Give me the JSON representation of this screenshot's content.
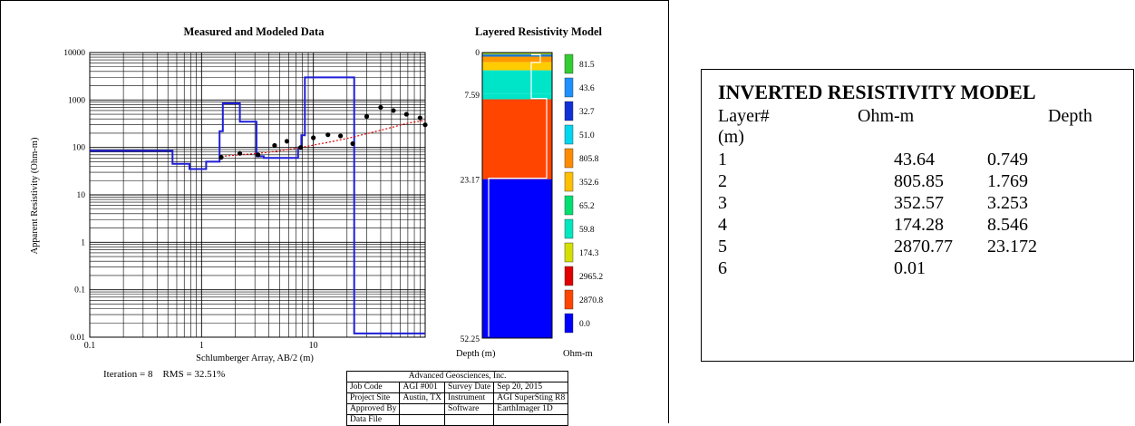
{
  "report": {
    "left_chart": {
      "title": "Measured and Modeled Data",
      "xlabel": "Schlumberger Array, AB/2 (m)",
      "ylabel": "Apparent Resistivity (Ohm-m)",
      "iteration_label": "Iteration = 8",
      "rms_label": "RMS = 32.51%"
    },
    "right_chart": {
      "title": "Layered Resistivity Model",
      "depth_label": "Depth (m)",
      "ohm_label": "Ohm-m"
    },
    "info_table": {
      "company": "Advanced Geosciences, Inc.",
      "rows": [
        [
          "Job Code",
          "AGI #001",
          "Survey Date",
          "Sep 20, 2015"
        ],
        [
          "Project Site",
          "Austin, TX",
          "Instrument",
          "AGI SuperSting R8"
        ],
        [
          "Approved By",
          "",
          "Software",
          "EarthImager 1D"
        ],
        [
          "Data File",
          "",
          "",
          ""
        ]
      ]
    }
  },
  "colors": {
    "model_line": "#1f1fd6",
    "fit_line": "#e00000",
    "points": "#000000"
  },
  "chart_data": [
    {
      "type": "line",
      "title": "Measured and Modeled Data",
      "xlabel": "Schlumberger Array, AB/2 (m)",
      "ylabel": "Apparent Resistivity (Ohm-m)",
      "x_scale": "log",
      "y_scale": "log",
      "xlim": [
        0.1,
        100
      ],
      "ylim": [
        0.01,
        10000
      ],
      "x_ticks": [
        "0.1",
        "1",
        "10"
      ],
      "y_ticks": [
        "0.01",
        "0.1",
        "1",
        "10",
        "100",
        "1000",
        "10000"
      ],
      "grid": true,
      "series": [
        {
          "kind": "step-model",
          "x": [
            0.1,
            0.55,
            0.55,
            0.78,
            0.78,
            1.1,
            1.1,
            1.45,
            1.45,
            1.55,
            1.55,
            2.2,
            2.2,
            3.1,
            3.1,
            3.6,
            3.6,
            4.3,
            4.3,
            7.3,
            7.3,
            7.8,
            7.8,
            8.4,
            8.4,
            23.2,
            23.2,
            100
          ],
          "y": [
            85,
            85,
            45,
            45,
            35,
            35,
            50,
            50,
            220,
            220,
            850,
            850,
            350,
            350,
            65,
            65,
            60,
            60,
            60,
            60,
            100,
            100,
            180,
            180,
            3000,
            3000,
            0.012,
            0.012
          ]
        },
        {
          "kind": "measured",
          "x": [
            1.5,
            2.2,
            3.2,
            4.5,
            5.8,
            7.7,
            10,
            13.5,
            17.5,
            22.5,
            30,
            40,
            52,
            68,
            90,
            100
          ],
          "y": [
            62,
            75,
            70,
            110,
            135,
            100,
            160,
            185,
            175,
            120,
            450,
            700,
            600,
            500,
            420,
            300
          ]
        },
        {
          "kind": "fit",
          "x": [
            1.5,
            2.2,
            3.2,
            4.5,
            5.8,
            7.7,
            10,
            13.5,
            17.5,
            22.5,
            30,
            40,
            52,
            68,
            90,
            100
          ],
          "y": [
            65,
            70,
            75,
            82,
            90,
            100,
            112,
            128,
            145,
            165,
            195,
            230,
            270,
            320,
            360,
            375
          ]
        }
      ]
    },
    {
      "type": "table",
      "title": "Layered Resistivity Model",
      "depth_ticks": [
        "0",
        "7.59",
        "23.17",
        "52.25"
      ],
      "depth_range": [
        0,
        52.25
      ],
      "layers": [
        {
          "top": 0,
          "bottom": 0.35,
          "color": "#9acd32"
        },
        {
          "top": 0.35,
          "bottom": 0.75,
          "color": "#1874cd"
        },
        {
          "top": 0.75,
          "bottom": 1.77,
          "color": "#ff9900"
        },
        {
          "top": 1.77,
          "bottom": 3.25,
          "color": "#ffcc00"
        },
        {
          "top": 3.25,
          "bottom": 7.59,
          "color": "#00e5c8"
        },
        {
          "top": 7.59,
          "bottom": 8.55,
          "color": "#00e5c8"
        },
        {
          "top": 8.55,
          "bottom": 23.17,
          "color": "#ff4500"
        },
        {
          "top": 23.17,
          "bottom": 52.25,
          "color": "#0000ff"
        }
      ],
      "legend": [
        {
          "label": "81.5",
          "color": "#32cd32"
        },
        {
          "label": "43.6",
          "color": "#1e90ff"
        },
        {
          "label": "32.7",
          "color": "#1030d8"
        },
        {
          "label": "51.0",
          "color": "#00d7f0"
        },
        {
          "label": "805.8",
          "color": "#ff8c00"
        },
        {
          "label": "352.6",
          "color": "#ffc000"
        },
        {
          "label": "65.2",
          "color": "#00e070"
        },
        {
          "label": "59.8",
          "color": "#00e8c0"
        },
        {
          "label": "174.3",
          "color": "#d4e000"
        },
        {
          "label": "2965.2",
          "color": "#e00000"
        },
        {
          "label": "2870.8",
          "color": "#ff4500"
        },
        {
          "label": "0.0",
          "color": "#0000ff"
        }
      ]
    },
    {
      "type": "table",
      "title": "INVERTED RESISTIVITY MODEL",
      "columns": [
        "Layer#",
        "Ohm-m",
        "Depth"
      ],
      "unit_row": "(m)",
      "rows": [
        [
          "1",
          "43.64",
          "0.749"
        ],
        [
          "2",
          "805.85",
          "1.769"
        ],
        [
          "3",
          "352.57",
          "3.253"
        ],
        [
          "4",
          "174.28",
          "8.546"
        ],
        [
          "5",
          "2870.77",
          "23.172"
        ],
        [
          "6",
          "0.01",
          ""
        ]
      ]
    }
  ]
}
